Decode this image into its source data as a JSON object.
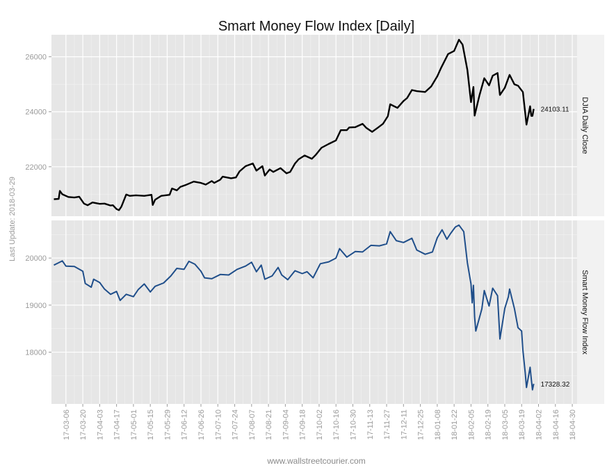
{
  "chart_data": {
    "type": "line",
    "title": "Smart Money Flow Index [Daily]",
    "side_label": "Last Update: 2018-03-29",
    "footer": "www.wallstreetcourier.com",
    "x_ticks": [
      "17-03-06",
      "17-03-20",
      "17-04-03",
      "17-04-17",
      "17-05-01",
      "17-05-15",
      "17-05-29",
      "17-06-12",
      "17-06-26",
      "17-07-10",
      "17-07-24",
      "17-08-07",
      "17-08-21",
      "17-09-04",
      "17-09-18",
      "17-10-02",
      "17-10-16",
      "17-10-30",
      "17-11-13",
      "17-11-27",
      "17-12-11",
      "17-12-25",
      "18-01-08",
      "18-01-22",
      "18-02-05",
      "18-02-19",
      "18-03-05",
      "18-03-19",
      "18-04-02",
      "18-04-16",
      "18-04-30"
    ],
    "x_range": [
      "2017-02-22",
      "2018-05-04"
    ],
    "grid": true,
    "panels": [
      {
        "name": "DJIA Daily Close",
        "color": "#000000",
        "ylim": [
          20200,
          26800
        ],
        "y_ticks": [
          22000,
          24000,
          26000
        ],
        "last_label": "24103.11",
        "points": [
          [
            "2017-02-24",
            20820
          ],
          [
            "2017-02-28",
            20830
          ],
          [
            "2017-03-01",
            21120
          ],
          [
            "2017-03-03",
            21000
          ],
          [
            "2017-03-08",
            20900
          ],
          [
            "2017-03-13",
            20880
          ],
          [
            "2017-03-17",
            20910
          ],
          [
            "2017-03-21",
            20660
          ],
          [
            "2017-03-24",
            20600
          ],
          [
            "2017-03-28",
            20700
          ],
          [
            "2017-04-03",
            20650
          ],
          [
            "2017-04-07",
            20660
          ],
          [
            "2017-04-12",
            20590
          ],
          [
            "2017-04-14",
            20600
          ],
          [
            "2017-04-17",
            20460
          ],
          [
            "2017-04-19",
            20420
          ],
          [
            "2017-04-21",
            20550
          ],
          [
            "2017-04-25",
            20990
          ],
          [
            "2017-04-28",
            20940
          ],
          [
            "2017-05-03",
            20960
          ],
          [
            "2017-05-10",
            20940
          ],
          [
            "2017-05-16",
            20980
          ],
          [
            "2017-05-17",
            20610
          ],
          [
            "2017-05-19",
            20800
          ],
          [
            "2017-05-24",
            20940
          ],
          [
            "2017-05-31",
            20980
          ],
          [
            "2017-06-02",
            21210
          ],
          [
            "2017-06-06",
            21140
          ],
          [
            "2017-06-09",
            21270
          ],
          [
            "2017-06-13",
            21330
          ],
          [
            "2017-06-20",
            21460
          ],
          [
            "2017-06-26",
            21410
          ],
          [
            "2017-06-30",
            21350
          ],
          [
            "2017-07-05",
            21480
          ],
          [
            "2017-07-07",
            21410
          ],
          [
            "2017-07-12",
            21530
          ],
          [
            "2017-07-14",
            21640
          ],
          [
            "2017-07-21",
            21580
          ],
          [
            "2017-07-25",
            21610
          ],
          [
            "2017-07-28",
            21830
          ],
          [
            "2017-08-02",
            22020
          ],
          [
            "2017-08-08",
            22120
          ],
          [
            "2017-08-11",
            21860
          ],
          [
            "2017-08-16",
            22020
          ],
          [
            "2017-08-18",
            21680
          ],
          [
            "2017-08-22",
            21900
          ],
          [
            "2017-08-25",
            21810
          ],
          [
            "2017-08-31",
            21950
          ],
          [
            "2017-09-05",
            21760
          ],
          [
            "2017-09-08",
            21810
          ],
          [
            "2017-09-12",
            22120
          ],
          [
            "2017-09-15",
            22270
          ],
          [
            "2017-09-20",
            22410
          ],
          [
            "2017-09-26",
            22290
          ],
          [
            "2017-09-29",
            22420
          ],
          [
            "2017-10-04",
            22690
          ],
          [
            "2017-10-10",
            22830
          ],
          [
            "2017-10-16",
            22960
          ],
          [
            "2017-10-20",
            23330
          ],
          [
            "2017-10-25",
            23330
          ],
          [
            "2017-10-27",
            23430
          ],
          [
            "2017-11-01",
            23440
          ],
          [
            "2017-11-07",
            23560
          ],
          [
            "2017-11-10",
            23420
          ],
          [
            "2017-11-15",
            23270
          ],
          [
            "2017-11-20",
            23430
          ],
          [
            "2017-11-24",
            23560
          ],
          [
            "2017-11-28",
            23840
          ],
          [
            "2017-11-30",
            24270
          ],
          [
            "2017-12-06",
            24140
          ],
          [
            "2017-12-11",
            24390
          ],
          [
            "2017-12-14",
            24500
          ],
          [
            "2017-12-18",
            24790
          ],
          [
            "2017-12-22",
            24750
          ],
          [
            "2017-12-29",
            24720
          ],
          [
            "2018-01-03",
            24920
          ],
          [
            "2018-01-08",
            25290
          ],
          [
            "2018-01-11",
            25580
          ],
          [
            "2018-01-17",
            26100
          ],
          [
            "2018-01-22",
            26210
          ],
          [
            "2018-01-26",
            26620
          ],
          [
            "2018-01-29",
            26440
          ],
          [
            "2018-02-02",
            25520
          ],
          [
            "2018-02-05",
            24350
          ],
          [
            "2018-02-07",
            24900
          ],
          [
            "2018-02-08",
            23860
          ],
          [
            "2018-02-12",
            24600
          ],
          [
            "2018-02-16",
            25220
          ],
          [
            "2018-02-20",
            24960
          ],
          [
            "2018-02-23",
            25310
          ],
          [
            "2018-02-27",
            25410
          ],
          [
            "2018-03-01",
            24610
          ],
          [
            "2018-03-05",
            24870
          ],
          [
            "2018-03-09",
            25340
          ],
          [
            "2018-03-13",
            25000
          ],
          [
            "2018-03-16",
            24950
          ],
          [
            "2018-03-20",
            24720
          ],
          [
            "2018-03-22",
            23950
          ],
          [
            "2018-03-23",
            23530
          ],
          [
            "2018-03-26",
            24200
          ],
          [
            "2018-03-27",
            23850
          ],
          [
            "2018-03-28",
            23850
          ],
          [
            "2018-03-29",
            24103
          ]
        ]
      },
      {
        "name": "Smart Money Flow Index",
        "color": "#1f4e8a",
        "ylim": [
          16900,
          20800
        ],
        "y_ticks": [
          18000,
          19000,
          20000
        ],
        "last_label": "17328.32",
        "points": [
          [
            "2017-02-24",
            19850
          ],
          [
            "2017-02-28",
            19900
          ],
          [
            "2017-03-03",
            19940
          ],
          [
            "2017-03-06",
            19830
          ],
          [
            "2017-03-13",
            19820
          ],
          [
            "2017-03-20",
            19720
          ],
          [
            "2017-03-22",
            19460
          ],
          [
            "2017-03-27",
            19380
          ],
          [
            "2017-03-29",
            19550
          ],
          [
            "2017-04-03",
            19480
          ],
          [
            "2017-04-07",
            19340
          ],
          [
            "2017-04-12",
            19230
          ],
          [
            "2017-04-17",
            19290
          ],
          [
            "2017-04-20",
            19100
          ],
          [
            "2017-04-25",
            19230
          ],
          [
            "2017-05-01",
            19180
          ],
          [
            "2017-05-05",
            19330
          ],
          [
            "2017-05-10",
            19450
          ],
          [
            "2017-05-15",
            19280
          ],
          [
            "2017-05-19",
            19400
          ],
          [
            "2017-05-26",
            19470
          ],
          [
            "2017-06-01",
            19620
          ],
          [
            "2017-06-06",
            19780
          ],
          [
            "2017-06-12",
            19760
          ],
          [
            "2017-06-16",
            19930
          ],
          [
            "2017-06-21",
            19870
          ],
          [
            "2017-06-26",
            19720
          ],
          [
            "2017-06-29",
            19580
          ],
          [
            "2017-07-05",
            19560
          ],
          [
            "2017-07-12",
            19650
          ],
          [
            "2017-07-19",
            19640
          ],
          [
            "2017-07-26",
            19760
          ],
          [
            "2017-08-02",
            19830
          ],
          [
            "2017-08-07",
            19910
          ],
          [
            "2017-08-11",
            19710
          ],
          [
            "2017-08-15",
            19850
          ],
          [
            "2017-08-18",
            19550
          ],
          [
            "2017-08-24",
            19620
          ],
          [
            "2017-08-29",
            19800
          ],
          [
            "2017-09-01",
            19640
          ],
          [
            "2017-09-06",
            19540
          ],
          [
            "2017-09-12",
            19730
          ],
          [
            "2017-09-18",
            19670
          ],
          [
            "2017-09-22",
            19710
          ],
          [
            "2017-09-27",
            19580
          ],
          [
            "2017-10-03",
            19880
          ],
          [
            "2017-10-10",
            19920
          ],
          [
            "2017-10-16",
            20000
          ],
          [
            "2017-10-19",
            20200
          ],
          [
            "2017-10-25",
            20020
          ],
          [
            "2017-11-01",
            20140
          ],
          [
            "2017-11-07",
            20130
          ],
          [
            "2017-11-14",
            20270
          ],
          [
            "2017-11-21",
            20260
          ],
          [
            "2017-11-27",
            20300
          ],
          [
            "2017-11-30",
            20560
          ],
          [
            "2017-12-05",
            20370
          ],
          [
            "2017-12-11",
            20330
          ],
          [
            "2017-12-18",
            20420
          ],
          [
            "2017-12-22",
            20170
          ],
          [
            "2017-12-29",
            20080
          ],
          [
            "2018-01-04",
            20130
          ],
          [
            "2018-01-08",
            20430
          ],
          [
            "2018-01-12",
            20600
          ],
          [
            "2018-01-16",
            20400
          ],
          [
            "2018-01-19",
            20520
          ],
          [
            "2018-01-23",
            20660
          ],
          [
            "2018-01-26",
            20700
          ],
          [
            "2018-01-30",
            20560
          ],
          [
            "2018-02-02",
            19900
          ],
          [
            "2018-02-05",
            19450
          ],
          [
            "2018-02-06",
            19050
          ],
          [
            "2018-02-07",
            19420
          ],
          [
            "2018-02-08",
            18750
          ],
          [
            "2018-02-09",
            18450
          ],
          [
            "2018-02-14",
            18920
          ],
          [
            "2018-02-16",
            19310
          ],
          [
            "2018-02-20",
            18980
          ],
          [
            "2018-02-23",
            19360
          ],
          [
            "2018-02-27",
            19200
          ],
          [
            "2018-03-01",
            18280
          ],
          [
            "2018-03-05",
            18930
          ],
          [
            "2018-03-08",
            19180
          ],
          [
            "2018-03-09",
            19340
          ],
          [
            "2018-03-13",
            18930
          ],
          [
            "2018-03-16",
            18520
          ],
          [
            "2018-03-19",
            18450
          ],
          [
            "2018-03-20",
            18050
          ],
          [
            "2018-03-22",
            17560
          ],
          [
            "2018-03-23",
            17250
          ],
          [
            "2018-03-26",
            17680
          ],
          [
            "2018-03-27",
            17430
          ],
          [
            "2018-03-28",
            17200
          ],
          [
            "2018-03-29",
            17328
          ]
        ]
      }
    ]
  }
}
